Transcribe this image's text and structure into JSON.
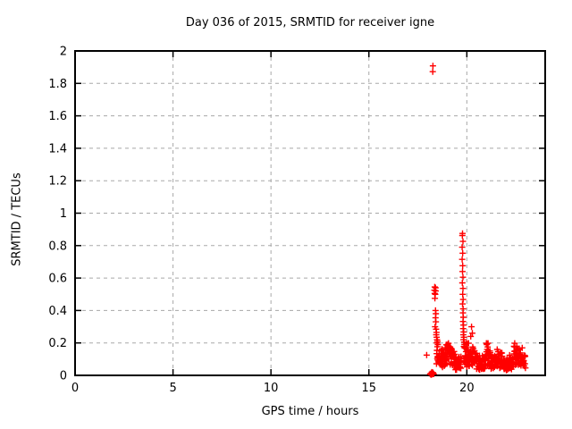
{
  "chart_data": {
    "type": "scatter",
    "title": "Day 036 of 2015, SRMTID for receiver igne",
    "xlabel": "GPS time / hours",
    "ylabel": "SRMTID / TECUs",
    "xlim": [
      0,
      24
    ],
    "ylim": [
      0,
      2
    ],
    "xtick_labels": [
      "0",
      "5",
      "10",
      "15",
      "20"
    ],
    "ytick_labels": [
      "0",
      "0.2",
      "0.4",
      "0.6",
      "0.8",
      "1",
      "1.2",
      "1.4",
      "1.6",
      "1.8",
      "2"
    ],
    "grid": "dashed",
    "legend": "none",
    "marker": "plus",
    "marker_color": "#ff0000",
    "grid_color": "#a8a8a8",
    "border_color": "#000000",
    "points": [
      [
        17.95,
        0.125
      ],
      [
        18.13,
        0.01
      ],
      [
        18.16,
        0.008
      ],
      [
        18.19,
        0.012
      ],
      [
        18.22,
        0.006
      ],
      [
        18.25,
        0.01
      ],
      [
        18.28,
        0.016
      ],
      [
        18.31,
        0.008
      ],
      [
        18.21,
        0.02
      ],
      [
        18.24,
        0.018
      ],
      [
        18.17,
        0.004
      ],
      [
        18.26,
        1.872
      ],
      [
        18.27,
        1.908
      ],
      [
        18.36,
        0.545
      ],
      [
        18.4,
        0.54
      ],
      [
        18.34,
        0.525
      ],
      [
        18.41,
        0.52
      ],
      [
        18.36,
        0.505
      ],
      [
        18.39,
        0.5
      ],
      [
        18.37,
        0.475
      ],
      [
        18.4,
        0.4
      ],
      [
        18.42,
        0.38
      ],
      [
        18.4,
        0.355
      ],
      [
        18.42,
        0.33
      ],
      [
        18.38,
        0.3
      ],
      [
        18.43,
        0.285
      ],
      [
        18.45,
        0.265
      ],
      [
        18.44,
        0.25
      ],
      [
        18.46,
        0.235
      ],
      [
        18.48,
        0.22
      ],
      [
        18.5,
        0.21
      ],
      [
        18.47,
        0.2
      ],
      [
        18.52,
        0.19
      ],
      [
        18.9,
        0.17
      ],
      [
        19.15,
        0.175
      ],
      [
        19.2,
        0.165
      ],
      [
        19.78,
        0.875
      ],
      [
        19.77,
        0.862
      ],
      [
        19.8,
        0.826
      ],
      [
        19.76,
        0.79
      ],
      [
        19.79,
        0.753
      ],
      [
        19.76,
        0.715
      ],
      [
        19.79,
        0.676
      ],
      [
        19.78,
        0.64
      ],
      [
        19.8,
        0.605
      ],
      [
        19.77,
        0.57
      ],
      [
        19.8,
        0.536
      ],
      [
        19.79,
        0.5
      ],
      [
        19.81,
        0.468
      ],
      [
        19.78,
        0.44
      ],
      [
        19.81,
        0.41
      ],
      [
        19.8,
        0.385
      ],
      [
        19.82,
        0.358
      ],
      [
        19.8,
        0.332
      ],
      [
        19.83,
        0.31
      ],
      [
        19.81,
        0.288
      ],
      [
        19.84,
        0.268
      ],
      [
        19.82,
        0.25
      ],
      [
        19.85,
        0.235
      ],
      [
        19.83,
        0.22
      ],
      [
        19.86,
        0.205
      ],
      [
        19.88,
        0.19
      ],
      [
        19.85,
        0.178
      ],
      [
        19.9,
        0.168
      ],
      [
        20.2,
        0.24
      ],
      [
        20.24,
        0.3
      ],
      [
        20.28,
        0.26
      ],
      [
        20.3,
        0.175
      ],
      [
        20.33,
        0.165
      ],
      [
        21.02,
        0.19
      ],
      [
        21.06,
        0.175
      ],
      [
        21.55,
        0.16
      ],
      [
        22.45,
        0.175
      ],
      [
        22.55,
        0.18
      ],
      [
        22.6,
        0.165
      ]
    ],
    "noise_bands": [
      {
        "x0": 18.45,
        "x1": 18.75,
        "n": 30,
        "base0": 0.13,
        "base1": 0.1,
        "spread": 0.12
      },
      {
        "x0": 18.75,
        "x1": 19.05,
        "n": 28,
        "base0": 0.1,
        "base1": 0.12,
        "spread": 0.1
      },
      {
        "x0": 19.05,
        "x1": 19.4,
        "n": 30,
        "base0": 0.13,
        "base1": 0.09,
        "spread": 0.11
      },
      {
        "x0": 19.4,
        "x1": 19.72,
        "n": 24,
        "base0": 0.07,
        "base1": 0.08,
        "spread": 0.08
      },
      {
        "x0": 19.85,
        "x1": 20.15,
        "n": 30,
        "base0": 0.12,
        "base1": 0.1,
        "spread": 0.12
      },
      {
        "x0": 20.15,
        "x1": 20.55,
        "n": 34,
        "base0": 0.11,
        "base1": 0.09,
        "spread": 0.11
      },
      {
        "x0": 20.55,
        "x1": 20.95,
        "n": 32,
        "base0": 0.07,
        "base1": 0.08,
        "spread": 0.08
      },
      {
        "x0": 20.95,
        "x1": 21.25,
        "n": 28,
        "base0": 0.11,
        "base1": 0.1,
        "spread": 0.12
      },
      {
        "x0": 21.25,
        "x1": 21.5,
        "n": 22,
        "base0": 0.08,
        "base1": 0.09,
        "spread": 0.08
      },
      {
        "x0": 21.5,
        "x1": 21.85,
        "n": 28,
        "base0": 0.1,
        "base1": 0.09,
        "spread": 0.1
      },
      {
        "x0": 21.85,
        "x1": 22.3,
        "n": 34,
        "base0": 0.06,
        "base1": 0.07,
        "spread": 0.07
      },
      {
        "x0": 22.3,
        "x1": 22.75,
        "n": 36,
        "base0": 0.1,
        "base1": 0.12,
        "spread": 0.1
      },
      {
        "x0": 22.75,
        "x1": 23.0,
        "n": 20,
        "base0": 0.1,
        "base1": 0.08,
        "spread": 0.08
      }
    ]
  }
}
